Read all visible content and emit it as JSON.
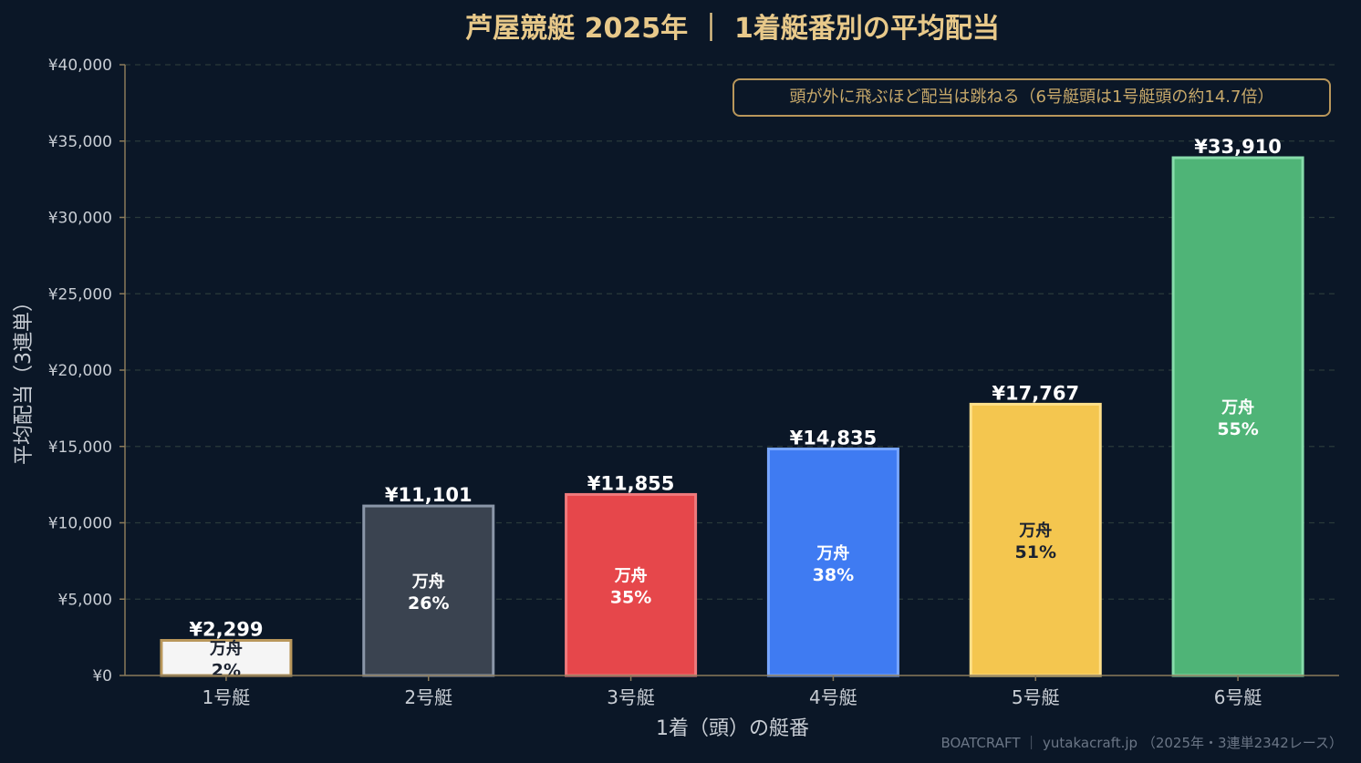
{
  "chart_data": {
    "type": "bar",
    "title": "芦屋競艇 2025年 ｜ 1着艇番別の平均配当",
    "xlabel": "1着（頭）の艇番",
    "ylabel": "平均配当（3連単）",
    "ylim": [
      0,
      40000
    ],
    "yticks": [
      "¥0",
      "¥5,000",
      "¥10,000",
      "¥15,000",
      "¥20,000",
      "¥25,000",
      "¥30,000",
      "¥35,000",
      "¥40,000"
    ],
    "ytick_values": [
      0,
      5000,
      10000,
      15000,
      20000,
      25000,
      30000,
      35000,
      40000
    ],
    "grid": true,
    "categories": [
      "1号艇",
      "2号艇",
      "3号艇",
      "4号艇",
      "5号艇",
      "6号艇"
    ],
    "values": [
      2299,
      11101,
      11855,
      14835,
      17767,
      33910
    ],
    "value_labels": [
      "¥2,299",
      "¥11,101",
      "¥11,855",
      "¥14,835",
      "¥17,767",
      "¥33,910"
    ],
    "inner_label": "万舟",
    "manshu_rate_labels": [
      "2%",
      "26%",
      "35%",
      "38%",
      "51%",
      "55%"
    ],
    "manshu_rate_values": [
      2,
      26,
      35,
      38,
      51,
      55
    ],
    "bar_colors": [
      "#f5f5f5",
      "#3a4350",
      "#e6474b",
      "#3f7bf2",
      "#f4c64f",
      "#4fb477"
    ],
    "bar_edge_colors": [
      "#b9975b",
      "#8a96a8",
      "#f07a7c",
      "#78a6ff",
      "#ffe08a",
      "#86dcaa"
    ],
    "inner_text_colors": [
      "#1b2230",
      "#ffffff",
      "#ffffff",
      "#ffffff",
      "#1b2230",
      "#ffffff"
    ],
    "annotation": "頭が外に飛ぶほど配当は跳ねる（6号艇頭は1号艇頭の約14.7倍）"
  },
  "footer": "BOATCRAFT ｜ yutakacraft.jp （2025年・3連単2342レース）",
  "colors": {
    "background": "#0b1727",
    "title": "#e8c98a",
    "axis_text": "#c8cdd4",
    "value_label": "#ffffff",
    "grid": "#2a3a3a",
    "axis_line": "#8a7a5a"
  }
}
